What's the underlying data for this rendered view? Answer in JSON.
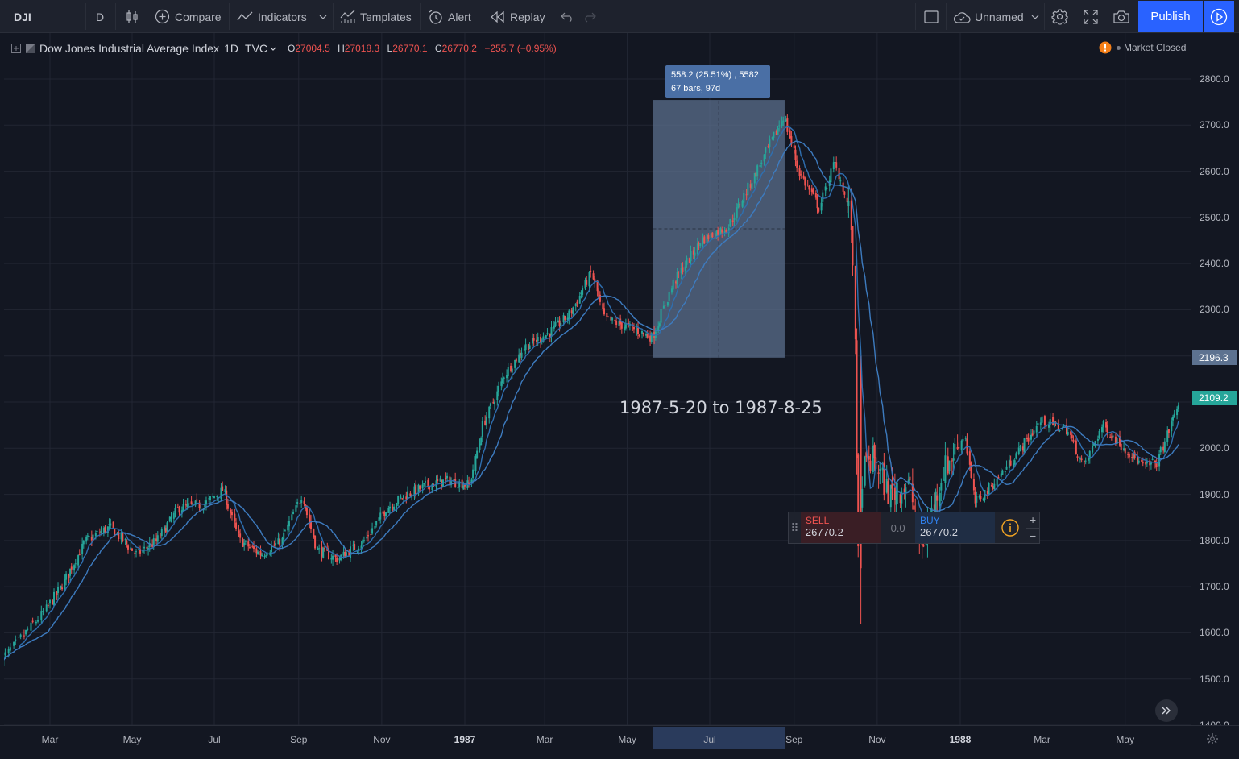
{
  "toolbar": {
    "symbol": "DJI",
    "interval": "D",
    "compare_label": "Compare",
    "indicators_label": "Indicators",
    "templates_label": "Templates",
    "alert_label": "Alert",
    "replay_label": "Replay",
    "layout_name": "Unnamed",
    "publish_label": "Publish"
  },
  "legend": {
    "title": "Dow Jones Industrial Average Index",
    "interval": "1D",
    "exchange": "TVC",
    "open_label": "O",
    "open": "27004.5",
    "high_label": "H",
    "high": "27018.3",
    "low_label": "L",
    "low": "26770.1",
    "close_label": "C",
    "close": "26770.2",
    "change": "−255.7 (−0.95%)"
  },
  "market_status": "Market Closed",
  "price_axis": {
    "ticks": [
      "2800.0",
      "2700.0",
      "2600.0",
      "2500.0",
      "2400.0",
      "2300.0",
      "2196.3",
      "2109.2",
      "2000.0",
      "1900.0",
      "1800.0",
      "1700.0",
      "1600.0",
      "1500.0",
      "1400.0"
    ],
    "marker_range_value": "2196.3",
    "marker_last_value": "2109.2"
  },
  "time_axis": {
    "ticks": [
      {
        "label": "Mar",
        "year": false
      },
      {
        "label": "May",
        "year": false
      },
      {
        "label": "Jul",
        "year": false
      },
      {
        "label": "Sep",
        "year": false
      },
      {
        "label": "Nov",
        "year": false
      },
      {
        "label": "1987",
        "year": true
      },
      {
        "label": "Mar",
        "year": false
      },
      {
        "label": "May",
        "year": false
      },
      {
        "label": "Jul",
        "year": false
      },
      {
        "label": "Sep",
        "year": false
      },
      {
        "label": "Nov",
        "year": false
      },
      {
        "label": "1988",
        "year": true
      },
      {
        "label": "Mar",
        "year": false
      },
      {
        "label": "May",
        "year": false
      }
    ]
  },
  "range_tooltip": {
    "line1": "558.2 (25.51%) , 5582",
    "line2": "67 bars, 97d"
  },
  "range_caption": "1987-5-20 to 1987-8-25",
  "trade_panel": {
    "sell_label": "SELL",
    "sell_price": "26770.2",
    "spread": "0.0",
    "buy_label": "BUY",
    "buy_price": "26770.2"
  },
  "colors": {
    "background": "#131722",
    "up": "#26a69a",
    "down": "#ef5350",
    "ma": "#2962a8",
    "accent": "#2962ff",
    "range_fill": "#5d7290"
  },
  "chart_data": {
    "type": "candlestick",
    "symbol": "DJI",
    "interval": "1D",
    "ylim": [
      1400,
      2800
    ],
    "x_ticks": [
      "Mar",
      "May",
      "Jul",
      "Sep",
      "Nov",
      "1987",
      "Mar",
      "May",
      "Jul",
      "Sep",
      "Nov",
      "1988",
      "Mar",
      "May"
    ],
    "y_ticks": [
      1400,
      1500,
      1600,
      1700,
      1800,
      1900,
      2000,
      2100,
      2200,
      2300,
      2400,
      2500,
      2600,
      2700,
      2800
    ],
    "anchors": [
      [
        "1986-02-01",
        1540
      ],
      [
        "1986-02-20",
        1620
      ],
      [
        "1986-03-10",
        1700
      ],
      [
        "1986-03-28",
        1800
      ],
      [
        "1986-04-15",
        1830
      ],
      [
        "1986-05-05",
        1770
      ],
      [
        "1986-05-20",
        1800
      ],
      [
        "1986-06-05",
        1870
      ],
      [
        "1986-06-25",
        1880
      ],
      [
        "1986-07-08",
        1910
      ],
      [
        "1986-07-20",
        1800
      ],
      [
        "1986-08-05",
        1770
      ],
      [
        "1986-08-20",
        1800
      ],
      [
        "1986-09-04",
        1900
      ],
      [
        "1986-09-15",
        1780
      ],
      [
        "1986-09-30",
        1760
      ],
      [
        "1986-10-20",
        1800
      ],
      [
        "1986-11-05",
        1870
      ],
      [
        "1986-11-20",
        1900
      ],
      [
        "1986-12-05",
        1920
      ],
      [
        "1986-12-20",
        1930
      ],
      [
        "1987-01-05",
        1920
      ],
      [
        "1987-01-15",
        2050
      ],
      [
        "1987-01-31",
        2160
      ],
      [
        "1987-02-15",
        2220
      ],
      [
        "1987-03-05",
        2250
      ],
      [
        "1987-03-20",
        2290
      ],
      [
        "1987-04-05",
        2380
      ],
      [
        "1987-04-15",
        2280
      ],
      [
        "1987-05-05",
        2260
      ],
      [
        "1987-05-20",
        2240
      ],
      [
        "1987-06-05",
        2360
      ],
      [
        "1987-06-25",
        2450
      ],
      [
        "1987-07-15",
        2480
      ],
      [
        "1987-08-05",
        2600
      ],
      [
        "1987-08-25",
        2720
      ],
      [
        "1987-09-05",
        2600
      ],
      [
        "1987-09-20",
        2520
      ],
      [
        "1987-10-01",
        2620
      ],
      [
        "1987-10-06",
        2580
      ],
      [
        "1987-10-13",
        2500
      ],
      [
        "1987-10-16",
        2250
      ],
      [
        "1987-10-19",
        1750
      ],
      [
        "1987-10-22",
        1950
      ],
      [
        "1987-10-30",
        1980
      ],
      [
        "1987-11-10",
        1900
      ],
      [
        "1987-11-25",
        1920
      ],
      [
        "1987-12-04",
        1780
      ],
      [
        "1987-12-20",
        1950
      ],
      [
        "1988-01-05",
        2030
      ],
      [
        "1988-01-12",
        1880
      ],
      [
        "1988-01-28",
        1930
      ],
      [
        "1988-02-15",
        2000
      ],
      [
        "1988-03-01",
        2060
      ],
      [
        "1988-03-20",
        2040
      ],
      [
        "1988-04-01",
        1960
      ],
      [
        "1988-04-15",
        2050
      ],
      [
        "1988-05-01",
        2000
      ],
      [
        "1988-05-15",
        1960
      ],
      [
        "1988-05-25",
        1970
      ],
      [
        "1988-06-10",
        2100
      ]
    ],
    "moving_averages": [
      {
        "type": "MA",
        "period": "short"
      },
      {
        "type": "MA",
        "period": "long"
      }
    ],
    "date_range": {
      "from": "1987-05-20",
      "to": "1987-08-25",
      "from_price": 2196.3,
      "change": 558.2,
      "change_pct": 25.51,
      "bars": 67,
      "days": 97
    },
    "last_price": 2109.2
  }
}
